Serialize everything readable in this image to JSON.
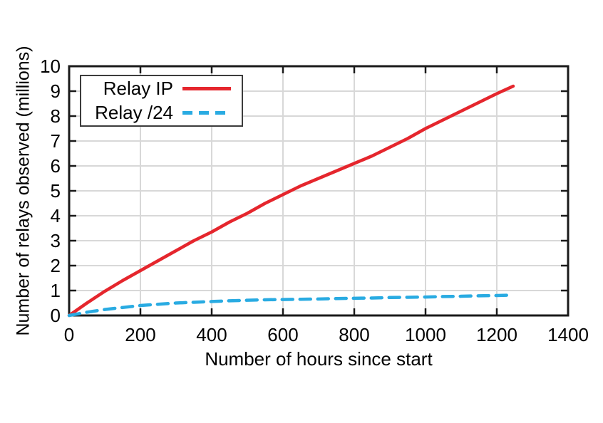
{
  "chart_data": {
    "type": "line",
    "title": "",
    "xlabel": "Number of hours since start",
    "ylabel": "Number of relays observed (millions)",
    "xlim": [
      0,
      1400
    ],
    "ylim": [
      0,
      10
    ],
    "xticks": [
      0,
      200,
      400,
      600,
      800,
      1000,
      1200,
      1400
    ],
    "yticks": [
      0,
      1,
      2,
      3,
      4,
      5,
      6,
      7,
      8,
      9,
      10
    ],
    "grid": true,
    "legend_position": "top-left",
    "background_color": "#ffffff",
    "axis_color": "#1a1a1a",
    "grid_color": "#d8d8d8",
    "legend_border_color": "#3c3c3c",
    "x": [
      0,
      50,
      100,
      150,
      200,
      250,
      300,
      350,
      400,
      450,
      500,
      550,
      600,
      650,
      700,
      750,
      800,
      850,
      900,
      950,
      1000,
      1050,
      1100,
      1150,
      1200,
      1246
    ],
    "series": [
      {
        "name": "Relay IP",
        "color": "#e5262d",
        "style": "solid",
        "values": [
          0,
          0.5,
          0.97,
          1.4,
          1.8,
          2.2,
          2.6,
          3.0,
          3.35,
          3.75,
          4.1,
          4.5,
          4.85,
          5.2,
          5.5,
          5.8,
          6.1,
          6.4,
          6.75,
          7.1,
          7.5,
          7.85,
          8.2,
          8.55,
          8.9,
          9.2
        ]
      },
      {
        "name": "Relay /24",
        "color": "#29abe2",
        "style": "dashed",
        "values": [
          0,
          0.13,
          0.24,
          0.32,
          0.4,
          0.45,
          0.5,
          0.53,
          0.56,
          0.59,
          0.61,
          0.63,
          0.64,
          0.65,
          0.66,
          0.68,
          0.69,
          0.7,
          0.72,
          0.73,
          0.74,
          0.76,
          0.77,
          0.79,
          0.8,
          0.82
        ]
      }
    ]
  }
}
